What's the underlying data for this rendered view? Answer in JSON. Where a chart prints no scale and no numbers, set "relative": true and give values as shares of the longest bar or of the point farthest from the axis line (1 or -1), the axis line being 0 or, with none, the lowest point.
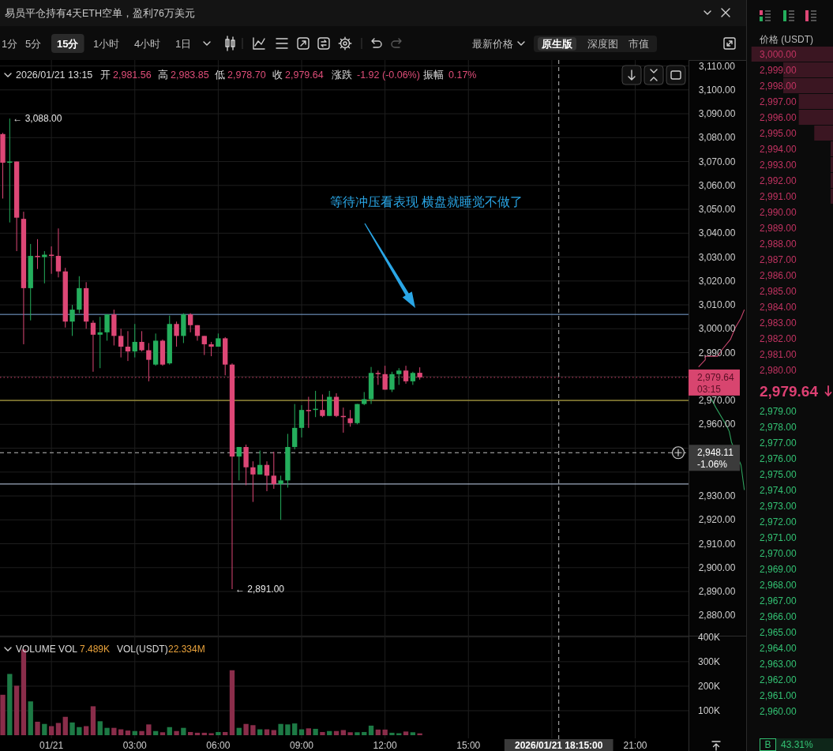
{
  "chart_data": [
    {
      "type": "other",
      "title": "易员平仓持有4天ETH空单，盈利76万美元",
      "annotations": [
        "1分",
        "5分",
        "15分",
        "1小时",
        "4小时",
        "1日",
        "最新价格",
        "原生版",
        "深度图",
        "市值"
      ]
    },
    {
      "type": "candlestick",
      "x": [
        "2026-01-20T22:15",
        "2026-01-20T22:30",
        "2026-01-20T22:45",
        "2026-01-20T23:00",
        "2026-01-20T23:15",
        "2026-01-20T23:30",
        "2026-01-20T23:45",
        "2026-01-21T00:00",
        "2026-01-21T00:15",
        "2026-01-21T00:30",
        "2026-01-21T00:45",
        "2026-01-21T01:00",
        "2026-01-21T01:15",
        "2026-01-21T01:30",
        "2026-01-21T01:45",
        "2026-01-21T02:00",
        "2026-01-21T02:15",
        "2026-01-21T02:30",
        "2026-01-21T02:45",
        "2026-01-21T03:00",
        "2026-01-21T03:15",
        "2026-01-21T03:30",
        "2026-01-21T03:45",
        "2026-01-21T04:00",
        "2026-01-21T04:15",
        "2026-01-21T04:30",
        "2026-01-21T04:45",
        "2026-01-21T05:00",
        "2026-01-21T05:15",
        "2026-01-21T05:30",
        "2026-01-21T05:45",
        "2026-01-21T06:00",
        "2026-01-21T06:15",
        "2026-01-21T06:30",
        "2026-01-21T06:45",
        "2026-01-21T07:00",
        "2026-01-21T07:15",
        "2026-01-21T07:30",
        "2026-01-21T07:45",
        "2026-01-21T08:00",
        "2026-01-21T08:15",
        "2026-01-21T08:30",
        "2026-01-21T08:45",
        "2026-01-21T09:00",
        "2026-01-21T09:15",
        "2026-01-21T09:30",
        "2026-01-21T09:45",
        "2026-01-21T10:00",
        "2026-01-21T10:15",
        "2026-01-21T10:30",
        "2026-01-21T10:45",
        "2026-01-21T11:00",
        "2026-01-21T11:15",
        "2026-01-21T11:30",
        "2026-01-21T11:45",
        "2026-01-21T12:00",
        "2026-01-21T12:15",
        "2026-01-21T12:30",
        "2026-01-21T12:45",
        "2026-01-21T13:00",
        "2026-01-21T13:15"
      ],
      "ohlc": [
        [
          3081.5,
          3082,
          3054.5,
          3069.5
        ],
        [
          3069.5,
          3088,
          3044.5,
          3070
        ],
        [
          3070,
          3070,
          3032.5,
          3046.5
        ],
        [
          3046,
          3049,
          2993.5,
          3017
        ],
        [
          3017,
          3035.5,
          3003.5,
          3030.5
        ],
        [
          3030.5,
          3037.5,
          3025,
          3030
        ],
        [
          3030,
          3032.5,
          3019,
          3031
        ],
        [
          3031,
          3034.5,
          3023,
          3030.5
        ],
        [
          3030.5,
          3042,
          3021.5,
          3024
        ],
        [
          3024,
          3025.5,
          3000.5,
          3003
        ],
        [
          3003,
          3010,
          2997,
          3008
        ],
        [
          3008,
          3022,
          3006.5,
          3017
        ],
        [
          3017,
          3019.5,
          3000,
          3003
        ],
        [
          3002.5,
          3003.5,
          2982,
          2997.5
        ],
        [
          2997.5,
          3005,
          2983.5,
          2998.5
        ],
        [
          2998.5,
          3006,
          2995,
          3006
        ],
        [
          3006,
          3008,
          2993,
          2997
        ],
        [
          2997,
          3000,
          2988,
          2992.5
        ],
        [
          2992.5,
          2999,
          2986.5,
          2990.5
        ],
        [
          2990.5,
          3002,
          2988,
          2994.5
        ],
        [
          2994.5,
          2999,
          2990.5,
          2991
        ],
        [
          2991,
          2994,
          2978,
          2987
        ],
        [
          2985,
          2998,
          2984.5,
          2995
        ],
        [
          2995,
          2995.5,
          2984.5,
          2985
        ],
        [
          2985.5,
          3005.5,
          2985,
          3002
        ],
        [
          3002,
          3003,
          2992.5,
          2997
        ],
        [
          2997,
          3006.5,
          2994,
          3006
        ],
        [
          3006,
          3006.5,
          2998.5,
          3001.5
        ],
        [
          3001.5,
          3001.5,
          2995,
          2997
        ],
        [
          2997,
          2997,
          2989,
          2993.5
        ],
        [
          2993.5,
          2994.5,
          2988.5,
          2992.5
        ],
        [
          2992.5,
          2998,
          2992.5,
          2996
        ],
        [
          2996,
          2996.5,
          2980.5,
          2985
        ],
        [
          2985,
          2985.5,
          2891,
          2946.5
        ],
        [
          2946.5,
          2950.5,
          2936.5,
          2950.5
        ],
        [
          2950.5,
          2951.5,
          2934.5,
          2942
        ],
        [
          2942,
          2944.5,
          2927.5,
          2939
        ],
        [
          2939,
          2949,
          2939,
          2943
        ],
        [
          2943,
          2944.5,
          2932,
          2938.5
        ],
        [
          2938.5,
          2948.5,
          2933,
          2935
        ],
        [
          2935,
          2938.5,
          2920,
          2936.5
        ],
        [
          2936.5,
          2956,
          2933.5,
          2950.5
        ],
        [
          2950.5,
          2968.5,
          2949.5,
          2958.5
        ],
        [
          2958.5,
          2968,
          2954.5,
          2966
        ],
        [
          2966,
          2971.5,
          2958.5,
          2965.5
        ],
        [
          2966,
          2974,
          2963,
          2966.5
        ],
        [
          2966,
          2972.5,
          2963,
          2963.5
        ],
        [
          2963.5,
          2974,
          2963.5,
          2971.5
        ],
        [
          2971.5,
          2973,
          2963,
          2963.5
        ],
        [
          2963.5,
          2967,
          2956.5,
          2963
        ],
        [
          2962.5,
          2966,
          2959,
          2960.5
        ],
        [
          2960.5,
          2968.5,
          2960,
          2968.5
        ],
        [
          2968.5,
          2973.5,
          2968,
          2970.5
        ],
        [
          2970.5,
          2984,
          2968.5,
          2981.5
        ],
        [
          2981.5,
          2982.5,
          2976.5,
          2981
        ],
        [
          2981,
          2984.5,
          2974.5,
          2974.5
        ],
        [
          2974.5,
          2982,
          2973.5,
          2981
        ],
        [
          2981,
          2983.5,
          2976.5,
          2982.5
        ],
        [
          2982.5,
          2984.5,
          2977,
          2978
        ],
        [
          2978,
          2982,
          2976.5,
          2981.5
        ],
        [
          2981.56,
          2983.85,
          2978.7,
          2979.64
        ]
      ],
      "colors": [
        "#dd4776",
        "#24ae5c",
        "#dd4776",
        "#dd4776",
        "#24ae5c",
        "#dd4776",
        "#24ae5c",
        "#dd4776",
        "#dd4776",
        "#dd4776",
        "#24ae5c",
        "#24ae5c",
        "#dd4776",
        "#dd4776",
        "#24ae5c",
        "#24ae5c",
        "#dd4776",
        "#dd4776",
        "#dd4776",
        "#24ae5c",
        "#dd4776",
        "#dd4776",
        "#24ae5c",
        "#dd4776",
        "#24ae5c",
        "#dd4776",
        "#24ae5c",
        "#dd4776",
        "#dd4776",
        "#dd4776",
        "#dd4776",
        "#24ae5c",
        "#dd4776",
        "#dd4776",
        "#24ae5c",
        "#dd4776",
        "#dd4776",
        "#24ae5c",
        "#dd4776",
        "#dd4776",
        "#24ae5c",
        "#24ae5c",
        "#24ae5c",
        "#24ae5c",
        "#dd4776",
        "#24ae5c",
        "#dd4776",
        "#24ae5c",
        "#dd4776",
        "#dd4776",
        "#dd4776",
        "#24ae5c",
        "#24ae5c",
        "#24ae5c",
        "#dd4776",
        "#dd4776",
        "#24ae5c",
        "#24ae5c",
        "#dd4776",
        "#24ae5c",
        "#dd4776"
      ],
      "xlim": [
        "2026-01-20T22:09",
        "2026-01-21T22:55"
      ],
      "xticks": [
        "2026-01-21T00:00",
        "2026-01-21T03:00",
        "2026-01-21T06:00",
        "2026-01-21T09:00",
        "2026-01-21T12:00",
        "2026-01-21T15:00",
        "2026-01-21T18:00",
        "2026-01-21T21:00"
      ],
      "ylim": [
        2871.5,
        3112.5
      ],
      "yticks": [
        {
          "value": 2880,
          "label": "2,880.00"
        },
        {
          "value": 2890,
          "label": "2,890.00"
        },
        {
          "value": 2900,
          "label": "2,900.00"
        },
        {
          "value": 2910,
          "label": "2,910.00"
        },
        {
          "value": 2920,
          "label": "2,920.00"
        },
        {
          "value": 2930,
          "label": "2,930.00"
        },
        {
          "value": 2940,
          "label": null
        },
        {
          "value": 2950,
          "label": null
        },
        {
          "value": 2960,
          "label": "2,960.00"
        },
        {
          "value": 2970,
          "label": "2,970.00"
        },
        {
          "value": 2980,
          "label": null
        },
        {
          "value": 2990,
          "label": "2,990.00"
        },
        {
          "value": 3000,
          "label": "3,000.00"
        },
        {
          "value": 3010,
          "label": "3,010.00"
        },
        {
          "value": 3020,
          "label": "3,020.00"
        },
        {
          "value": 3030,
          "label": "3,030.00"
        },
        {
          "value": 3040,
          "label": "3,040.00"
        },
        {
          "value": 3050,
          "label": "3,050.00"
        },
        {
          "value": 3060,
          "label": "3,060.00"
        },
        {
          "value": 3070,
          "label": "3,070.00"
        },
        {
          "value": 3080,
          "label": "3,080.00"
        },
        {
          "value": 3090,
          "label": "3,090.00"
        },
        {
          "value": 3100,
          "label": "3,100.00"
        },
        {
          "value": 3110,
          "label": "3,110.00"
        }
      ],
      "tick_labels": "y",
      "grid": true,
      "ref_lines": [
        {
          "axis": "y",
          "value": 3006,
          "color": "#7fa7d9"
        },
        {
          "axis": "y",
          "value": 2979.64,
          "label": "2,979.64\n03:15",
          "color": "#d8456f",
          "line_style": "dotted"
        },
        {
          "axis": "y",
          "value": 2970,
          "color": "#d2c24a"
        },
        {
          "axis": "y",
          "value": 2948.11,
          "label": "2,948.11\n-1.06%",
          "color": "#bdbdbd",
          "line_style": "dashed"
        },
        {
          "axis": "y",
          "value": 2935,
          "color": "#c4d4ec"
        },
        {
          "axis": "x",
          "value": "2026-01-21T18:15",
          "color": "#bdbdbd",
          "line_style": "dashed"
        }
      ],
      "annotations": [
        "2026/01/21 13:15",
        "开",
        "2,981.56",
        "高",
        "2,983.85",
        "低",
        "2,978.70",
        "收",
        "2,979.64",
        "涨跌",
        "-1.92 (-0.06%)",
        "振幅",
        "0.17%",
        "等待冲压看表现 横盘就睡觉不做了",
        {
          "text": "← 3,088.00",
          "x": "2026-01-20T22:30",
          "y": 3088
        },
        {
          "text": "← 2,891.00",
          "x": "2026-01-21T06:30",
          "y": 2891
        }
      ]
    },
    {
      "type": "bar",
      "title": "VOLUME",
      "x": [
        "2026-01-20T22:15",
        "2026-01-20T22:30",
        "2026-01-20T22:45",
        "2026-01-20T23:00",
        "2026-01-20T23:15",
        "2026-01-20T23:30",
        "2026-01-20T23:45",
        "2026-01-21T00:00",
        "2026-01-21T00:15",
        "2026-01-21T00:30",
        "2026-01-21T00:45",
        "2026-01-21T01:00",
        "2026-01-21T01:15",
        "2026-01-21T01:30",
        "2026-01-21T01:45",
        "2026-01-21T02:00",
        "2026-01-21T02:15",
        "2026-01-21T02:30",
        "2026-01-21T02:45",
        "2026-01-21T03:00",
        "2026-01-21T03:15",
        "2026-01-21T03:30",
        "2026-01-21T03:45",
        "2026-01-21T04:00",
        "2026-01-21T04:15",
        "2026-01-21T04:30",
        "2026-01-21T04:45",
        "2026-01-21T05:00",
        "2026-01-21T05:15",
        "2026-01-21T05:30",
        "2026-01-21T05:45",
        "2026-01-21T06:00",
        "2026-01-21T06:15",
        "2026-01-21T06:30",
        "2026-01-21T06:45",
        "2026-01-21T07:00",
        "2026-01-21T07:15",
        "2026-01-21T07:30",
        "2026-01-21T07:45",
        "2026-01-21T08:00",
        "2026-01-21T08:15",
        "2026-01-21T08:30",
        "2026-01-21T08:45",
        "2026-01-21T09:00",
        "2026-01-21T09:15",
        "2026-01-21T09:30",
        "2026-01-21T09:45",
        "2026-01-21T10:00",
        "2026-01-21T10:15",
        "2026-01-21T10:30",
        "2026-01-21T10:45",
        "2026-01-21T11:00",
        "2026-01-21T11:15",
        "2026-01-21T11:30",
        "2026-01-21T11:45",
        "2026-01-21T12:00",
        "2026-01-21T12:15",
        "2026-01-21T12:30",
        "2026-01-21T12:45",
        "2026-01-21T13:00",
        "2026-01-21T13:15"
      ],
      "values": [
        165000,
        250000,
        202000,
        350000,
        138000,
        55000,
        46000,
        37000,
        50000,
        75000,
        52000,
        33000,
        37000,
        118000,
        57000,
        30000,
        30000,
        24000,
        19000,
        17000,
        17000,
        44000,
        17000,
        12000,
        33000,
        17000,
        30000,
        13000,
        10000,
        10000,
        8000,
        13000,
        13000,
        265000,
        30000,
        46000,
        41000,
        24000,
        24000,
        21000,
        46000,
        44000,
        48000,
        24000,
        28000,
        26000,
        13000,
        17000,
        17000,
        21000,
        12000,
        12000,
        13000,
        39000,
        23000,
        23000,
        10000,
        8000,
        15000,
        12000,
        7489
      ],
      "colors": [
        "#8a2d4a",
        "#1d7a45",
        "#8a2d4a",
        "#8a2d4a",
        "#1d7a45",
        "#8a2d4a",
        "#1d7a45",
        "#8a2d4a",
        "#8a2d4a",
        "#8a2d4a",
        "#1d7a45",
        "#1d7a45",
        "#8a2d4a",
        "#8a2d4a",
        "#1d7a45",
        "#1d7a45",
        "#8a2d4a",
        "#8a2d4a",
        "#8a2d4a",
        "#1d7a45",
        "#8a2d4a",
        "#8a2d4a",
        "#1d7a45",
        "#8a2d4a",
        "#1d7a45",
        "#8a2d4a",
        "#1d7a45",
        "#8a2d4a",
        "#8a2d4a",
        "#8a2d4a",
        "#8a2d4a",
        "#1d7a45",
        "#8a2d4a",
        "#8a2d4a",
        "#1d7a45",
        "#8a2d4a",
        "#8a2d4a",
        "#1d7a45",
        "#8a2d4a",
        "#8a2d4a",
        "#1d7a45",
        "#1d7a45",
        "#1d7a45",
        "#1d7a45",
        "#8a2d4a",
        "#1d7a45",
        "#8a2d4a",
        "#1d7a45",
        "#8a2d4a",
        "#8a2d4a",
        "#8a2d4a",
        "#1d7a45",
        "#1d7a45",
        "#1d7a45",
        "#8a2d4a",
        "#8a2d4a",
        "#1d7a45",
        "#1d7a45",
        "#8a2d4a",
        "#1d7a45",
        "#8a2d4a"
      ],
      "xlim": [
        "2026-01-20T22:09",
        "2026-01-21T22:55"
      ],
      "xticks": [
        {
          "value": "2026-01-21T00:00",
          "label": "01/21"
        },
        {
          "value": "2026-01-21T03:00",
          "label": "03:00"
        },
        {
          "value": "2026-01-21T06:00",
          "label": "06:00"
        },
        {
          "value": "2026-01-21T09:00",
          "label": "09:00"
        },
        {
          "value": "2026-01-21T12:00",
          "label": "12:00"
        },
        {
          "value": "2026-01-21T15:00",
          "label": "15:00"
        },
        {
          "value": "2026-01-21T18:00",
          "label": null
        },
        {
          "value": "2026-01-21T21:00",
          "label": "21:00"
        }
      ],
      "ylim": [
        0,
        406000
      ],
      "yticks": [
        {
          "value": 100000,
          "label": "100K"
        },
        {
          "value": 200000,
          "label": "200K"
        },
        {
          "value": 300000,
          "label": "300K"
        },
        {
          "value": 400000,
          "label": "400K"
        }
      ],
      "grid": true,
      "ref_lines": [
        {
          "axis": "x",
          "value": "2026-01-21T18:15",
          "label": "2026/01/21 18:15:00",
          "color": "#bdbdbd",
          "line_style": "dashed"
        }
      ],
      "annotations": [
        "VOL",
        "7.489K",
        "VOL(USDT)",
        "22.334M"
      ]
    },
    {
      "type": "line",
      "orientation": "horizontal",
      "relative": true,
      "ylim": [
        2871.5,
        3112.5
      ],
      "series": [
        {
          "color": "#c8466e",
          "x": [
            2984,
            2987,
            2988.5,
            2988.5,
            2991.5,
            2995.5,
            3000.5,
            3004.5,
            3008
          ],
          "values": [
            0.18,
            0.3,
            0.3,
            0.52,
            0.61,
            0.75,
            0.84,
            0.94,
            1
          ]
        },
        {
          "color": "#2fa35f",
          "x": [
            2971,
            2967,
            2959.5,
            2957,
            2952.5,
            2943,
            2932.5
          ],
          "values": [
            0.4,
            0.49,
            0.68,
            0.73,
            0.77,
            0.94,
            1
          ]
        }
      ]
    },
    {
      "type": "bar",
      "orientation": "horizontal",
      "relative": true,
      "categories": [
        "3,000.00",
        "2,999.00",
        "2,998.00",
        "2,997.00",
        "2,996.00",
        "2,995.00",
        "2,994.00",
        "2,993.00",
        "2,992.00",
        "2,991.00",
        "2,990.00",
        "2,989.00",
        "2,988.00",
        "2,987.00",
        "2,986.00",
        "2,985.00",
        "2,984.00",
        "2,983.00",
        "2,982.00",
        "2,981.00",
        "2,980.00",
        "2,979.00",
        "2,978.00",
        "2,977.00",
        "2,976.00",
        "2,975.00",
        "2,974.00",
        "2,973.00",
        "2,972.00",
        "2,971.00",
        "2,970.00",
        "2,969.00",
        "2,968.00",
        "2,967.00",
        "2,966.00",
        "2,965.00",
        "2,964.00",
        "2,963.00",
        "2,962.00",
        "2,961.00",
        "2,960.00"
      ],
      "values": [
        -1,
        -0.61,
        -0.61,
        -0.42,
        -0.42,
        -0.23,
        -0.03,
        -0.03,
        -0.03,
        -0.03,
        null,
        null,
        null,
        null,
        null,
        null,
        null,
        null,
        null,
        null,
        null,
        null,
        null,
        null,
        null,
        null,
        null,
        null,
        null,
        null,
        null,
        null,
        null,
        null,
        null,
        null,
        null,
        null,
        null,
        null,
        null
      ],
      "colors": [
        "#3b1622",
        "#3b1622",
        "#3b1622",
        "#3b1622",
        "#3b1622",
        "#3b1622",
        "#3b1622",
        "#3b1622",
        "#3b1622",
        "#3b1622",
        "#3b1622",
        "#3b1622",
        "#3b1622",
        "#3b1622",
        "#3b1622",
        "#3b1622",
        "#3b1622",
        "#3b1622",
        "#3b1622",
        "#3b1622",
        "#3b1622",
        "#123a24",
        "#123a24",
        "#123a24",
        "#123a24",
        "#123a24",
        "#123a24",
        "#123a24",
        "#123a24",
        "#123a24",
        "#123a24",
        "#123a24",
        "#123a24",
        "#123a24",
        "#123a24",
        "#123a24",
        "#123a24",
        "#123a24",
        "#123a24",
        "#123a24",
        "#123a24"
      ],
      "annotations": [
        "价格 (USDT)",
        "2,979.64",
        "B",
        "43.31%"
      ]
    }
  ]
}
